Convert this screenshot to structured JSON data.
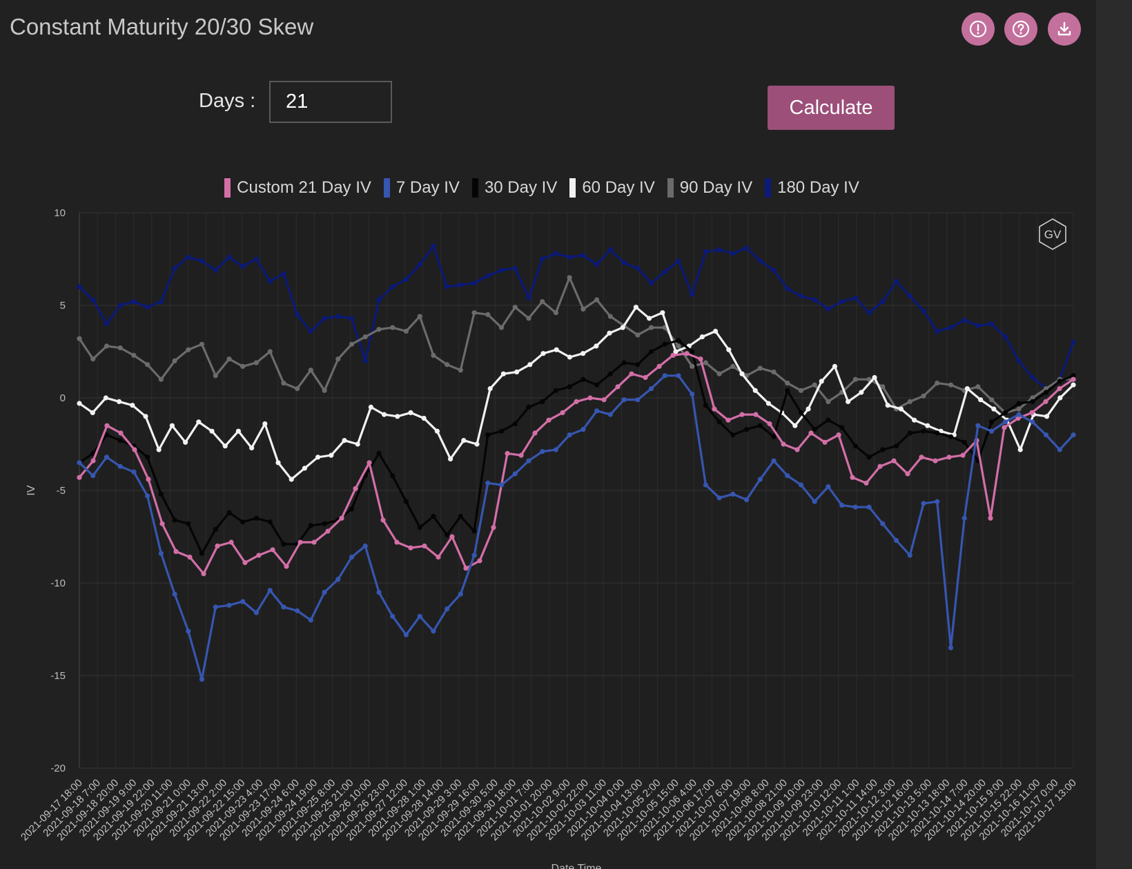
{
  "title": "Constant Maturity 20/30 Skew",
  "header_icons": [
    "alert-icon",
    "help-icon",
    "download-icon"
  ],
  "controls": {
    "days_label": "Days :",
    "days_value": "21",
    "calculate_label": "Calculate"
  },
  "colors": {
    "background": "#212121",
    "accent": "#c4709c",
    "button": "#9c4f79",
    "custom": "#d36fa7",
    "d7": "#3656b0",
    "d30": "#050505",
    "d60": "#f2f2f2",
    "d90": "#6b6b6b",
    "d180": "#0b1a78"
  },
  "watermark": "GV",
  "chart_data": {
    "type": "line",
    "xlabel": "Date Time",
    "ylabel": "IV",
    "ylim": [
      -20,
      10
    ],
    "yticks": [
      10,
      5,
      0,
      -5,
      -10,
      -15,
      -20
    ],
    "grid": true,
    "legend_position": "top-center",
    "x_tick_labels": [
      "2021-09-17 18:00",
      "2021-09-18 7:00",
      "2021-09-18 20:00",
      "2021-09-19 9:00",
      "2021-09-19 22:00",
      "2021-09-20 11:00",
      "2021-09-21 0:00",
      "2021-09-21 13:00",
      "2021-09-22 2:00",
      "2021-09-22 15:00",
      "2021-09-23 4:00",
      "2021-09-23 17:00",
      "2021-09-24 6:00",
      "2021-09-24 19:00",
      "2021-09-25 8:00",
      "2021-09-25 21:00",
      "2021-09-26 10:00",
      "2021-09-26 23:00",
      "2021-09-27 12:00",
      "2021-09-28 1:00",
      "2021-09-28 14:00",
      "2021-09-29 3:00",
      "2021-09-29 16:00",
      "2021-09-30 5:00",
      "2021-09-30 18:00",
      "2021-10-01 7:00",
      "2021-10-01 20:00",
      "2021-10-02 9:00",
      "2021-10-02 22:00",
      "2021-10-03 11:00",
      "2021-10-04 0:00",
      "2021-10-04 13:00",
      "2021-10-05 2:00",
      "2021-10-05 15:00",
      "2021-10-06 4:00",
      "2021-10-06 17:00",
      "2021-10-07 6:00",
      "2021-10-07 19:00",
      "2021-10-08 8:00",
      "2021-10-08 21:00",
      "2021-10-09 10:00",
      "2021-10-09 23:00",
      "2021-10-10 12:00",
      "2021-10-11 1:00",
      "2021-10-11 14:00",
      "2021-10-12 3:00",
      "2021-10-12 16:00",
      "2021-10-13 5:00",
      "2021-10-13 18:00",
      "2021-10-14 7:00",
      "2021-10-14 20:00",
      "2021-10-15 9:00",
      "2021-10-15 22:00",
      "2021-10-16 11:00",
      "2021-10-17 0:00",
      "2021-10-17 13:00"
    ],
    "series": [
      {
        "name": "180 Day IV",
        "color": "#0b1a78",
        "values": [
          6,
          5.3,
          4,
          5,
          5.2,
          4.9,
          5.2,
          7,
          7.6,
          7.4,
          6.9,
          7.6,
          7.1,
          7.5,
          6.3,
          6.7,
          4.5,
          3.6,
          4.3,
          4.4,
          4.3,
          2,
          5.3,
          6,
          6.4,
          7.2,
          8.2,
          6,
          6.1,
          6.2,
          6.6,
          6.9,
          7,
          5.4,
          7.5,
          7.8,
          7.6,
          7.7,
          7.2,
          8,
          7.3,
          7,
          6.2,
          6.8,
          7.4,
          5.6,
          7.9,
          8,
          7.8,
          8.1,
          7.4,
          6.9,
          5.9,
          5.5,
          5.3,
          4.8,
          5.2,
          5.4,
          4.6,
          5.2,
          6.3,
          5.5,
          4.7,
          3.6,
          3.8,
          4.2,
          3.9,
          4,
          3.3,
          2,
          1.1,
          0.5,
          1,
          3
        ]
      },
      {
        "name": "90 Day IV",
        "color": "#6b6b6b",
        "values": [
          3.2,
          2.1,
          2.8,
          2.7,
          2.3,
          1.8,
          1,
          2,
          2.6,
          2.9,
          1.2,
          2.1,
          1.7,
          1.9,
          2.5,
          0.8,
          0.5,
          1.5,
          0.4,
          2.1,
          2.9,
          3.3,
          3.7,
          3.8,
          3.6,
          4.4,
          2.3,
          1.8,
          1.5,
          4.6,
          4.5,
          3.8,
          4.9,
          4.3,
          5.2,
          4.6,
          6.5,
          4.8,
          5.3,
          4.4,
          3.9,
          3.4,
          3.8,
          3.8,
          2.8,
          1.7,
          1.9,
          1.3,
          1.7,
          1.2,
          1.6,
          1.4,
          0.8,
          0.4,
          0.7,
          -0.2,
          0.3,
          1,
          1,
          0.6,
          -0.6,
          -0.2,
          0.1,
          0.8,
          0.7,
          0.4,
          0.6,
          -0.1,
          -0.8,
          -0.6,
          0,
          0.5,
          1,
          1
        ]
      },
      {
        "name": "60 Day IV",
        "color": "#f2f2f2",
        "values": [
          -0.3,
          -0.8,
          0,
          -0.2,
          -0.4,
          -1,
          -2.8,
          -1.5,
          -2.4,
          -1.3,
          -1.8,
          -2.6,
          -1.8,
          -2.7,
          -1.4,
          -3.5,
          -4.4,
          -3.8,
          -3.2,
          -3.1,
          -2.3,
          -2.5,
          -0.5,
          -0.9,
          -1,
          -0.8,
          -1.1,
          -1.8,
          -3.3,
          -2.3,
          -2.5,
          0.5,
          1.3,
          1.4,
          1.8,
          2.4,
          2.6,
          2.2,
          2.4,
          2.8,
          3.5,
          3.8,
          4.9,
          4.3,
          4.6,
          2.5,
          2.8,
          3.3,
          3.6,
          2.6,
          1.3,
          0.4,
          -0.3,
          -0.8,
          -1.5,
          -0.6,
          0.9,
          1.7,
          -0.2,
          0.3,
          1.1,
          -0.4,
          -0.6,
          -1.2,
          -1.5,
          -1.8,
          -2,
          0.5,
          -0.1,
          -0.6,
          -1.2,
          -2.8,
          -0.9,
          -1,
          0,
          0.7
        ]
      },
      {
        "name": "30 Day IV",
        "color": "#050505",
        "values": [
          -3.5,
          -3,
          -2,
          -2.3,
          -2.6,
          -3.2,
          -5.2,
          -6.6,
          -6.8,
          -8.4,
          -7.1,
          -6.2,
          -6.7,
          -6.5,
          -6.7,
          -7.9,
          -7.9,
          -6.9,
          -6.8,
          -6.6,
          -6,
          -4.2,
          -3,
          -4.2,
          -5.6,
          -7,
          -6.4,
          -7.4,
          -6.4,
          -7.2,
          -2,
          -1.8,
          -1.4,
          -0.5,
          -0.2,
          0.4,
          0.6,
          1,
          0.7,
          1.3,
          1.9,
          1.8,
          2.5,
          2.9,
          3.1,
          2.5,
          -0.4,
          -1.3,
          -2,
          -1.7,
          -1.5,
          -2.1,
          0.4,
          -0.8,
          -1.7,
          -1.2,
          -1.6,
          -2.6,
          -3.2,
          -2.8,
          -2.6,
          -1.9,
          -1.8,
          -1.9,
          -2.1,
          -2.4,
          -3.4,
          -1.3,
          -0.8,
          -0.3,
          -0.2,
          0.3,
          0.9,
          1.2
        ]
      },
      {
        "name": "Custom 21 Day IV",
        "color": "#d36fa7",
        "values": [
          -4.3,
          -3.4,
          -1.5,
          -1.9,
          -2.8,
          -4.4,
          -6.8,
          -8.3,
          -8.6,
          -9.5,
          -8,
          -7.8,
          -8.9,
          -8.5,
          -8.2,
          -9.1,
          -7.8,
          -7.8,
          -7.2,
          -6.5,
          -4.9,
          -3.5,
          -6.6,
          -7.8,
          -8.1,
          -8,
          -8.6,
          -7.5,
          -9.2,
          -8.8,
          -7,
          -3,
          -3.1,
          -1.9,
          -1.2,
          -0.8,
          -0.2,
          0,
          -0.1,
          0.6,
          1.3,
          1.1,
          1.7,
          2.3,
          2.4,
          2.1,
          -0.6,
          -1.2,
          -0.9,
          -0.9,
          -1.4,
          -2.5,
          -2.8,
          -1.9,
          -2.4,
          -2,
          -4.3,
          -4.6,
          -3.7,
          -3.4,
          -4.1,
          -3.2,
          -3.4,
          -3.2,
          -3.1,
          -2.3,
          -6.5,
          -1.6,
          -1.1,
          -0.8,
          -0.2,
          0.5,
          1
        ]
      },
      {
        "name": "7 Day IV",
        "color": "#3656b0",
        "values": [
          -3.5,
          -4.2,
          -3.2,
          -3.7,
          -4,
          -5.3,
          -8.4,
          -10.6,
          -12.6,
          -15.2,
          -11.3,
          -11.2,
          -11,
          -11.6,
          -10.4,
          -11.3,
          -11.5,
          -12,
          -10.5,
          -9.8,
          -8.6,
          -8,
          -10.5,
          -11.8,
          -12.8,
          -11.8,
          -12.6,
          -11.4,
          -10.6,
          -8.5,
          -4.6,
          -4.7,
          -4.1,
          -3.4,
          -2.9,
          -2.8,
          -2,
          -1.7,
          -0.7,
          -0.9,
          -0.1,
          -0.1,
          0.5,
          1.2,
          1.2,
          0.2,
          -4.7,
          -5.4,
          -5.2,
          -5.5,
          -4.4,
          -3.4,
          -4.2,
          -4.7,
          -5.6,
          -4.8,
          -5.8,
          -5.9,
          -5.9,
          -6.8,
          -7.7,
          -8.5,
          -5.7,
          -5.6,
          -13.5,
          -6.5,
          -1.5,
          -1.8,
          -1.3,
          -0.9,
          -1.3,
          -2,
          -2.8,
          -2
        ]
      }
    ]
  }
}
